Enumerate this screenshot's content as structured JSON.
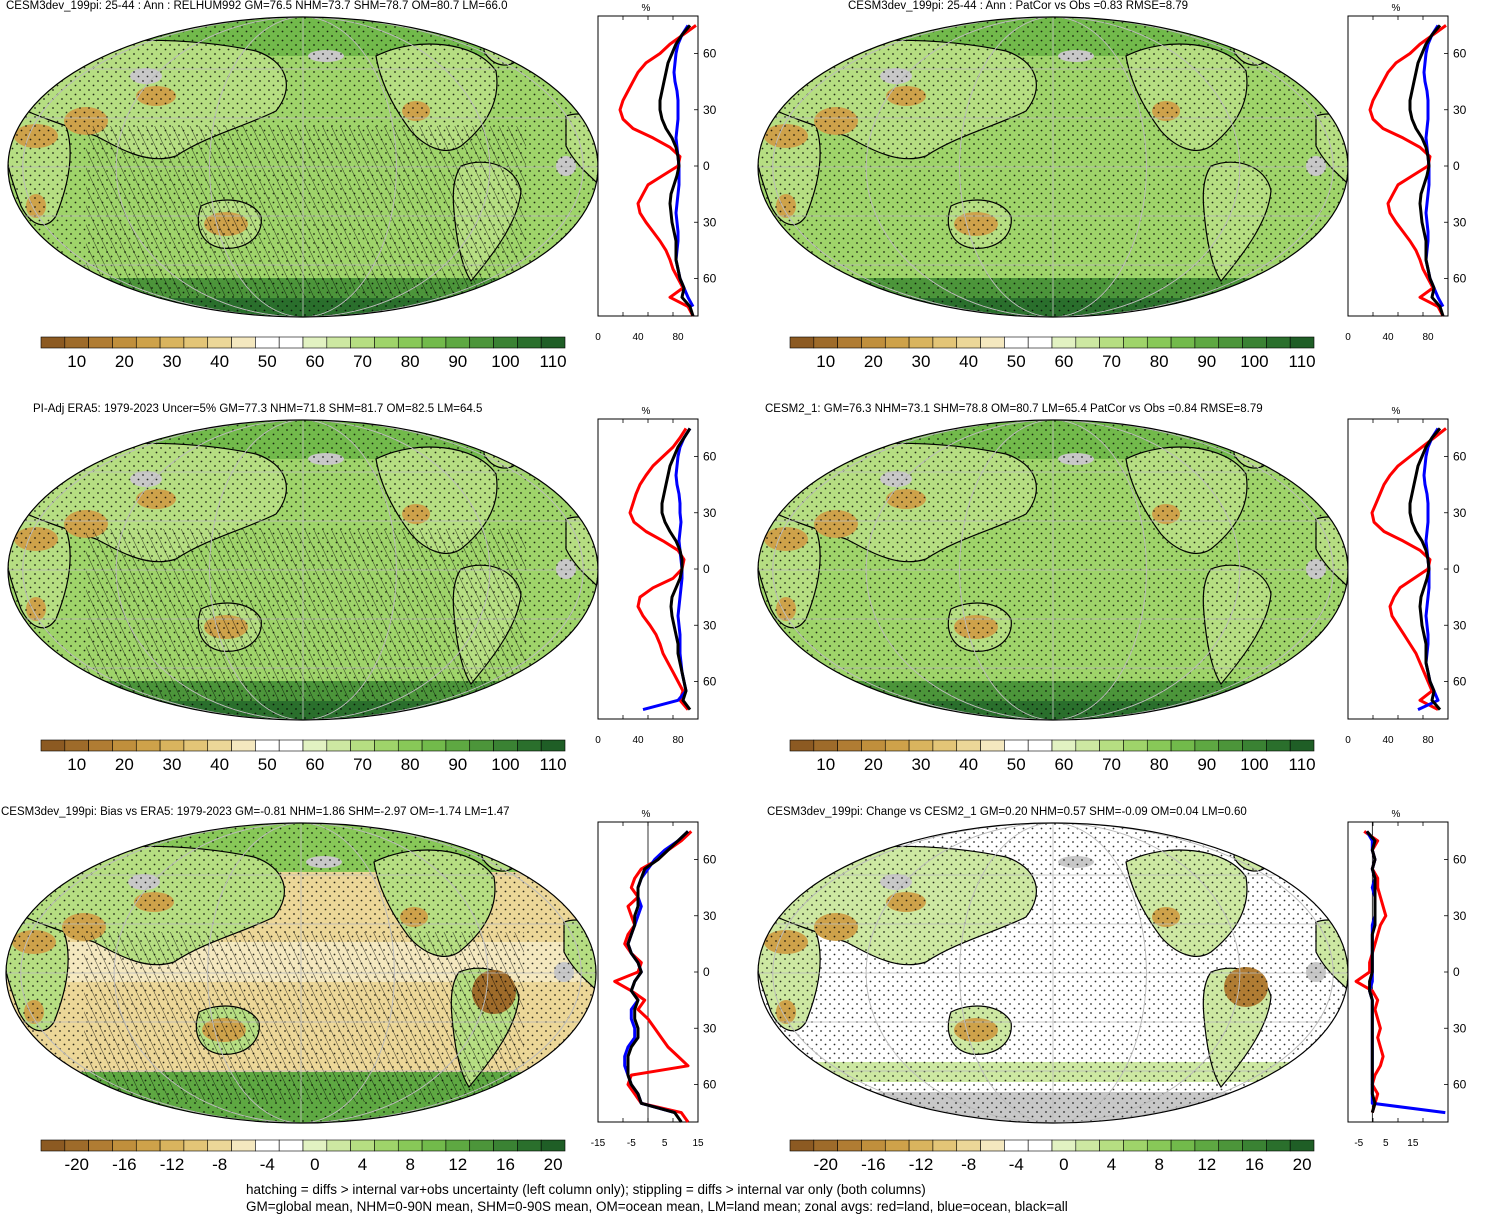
{
  "colorbars": {
    "abs": {
      "labels": [
        "10",
        "20",
        "30",
        "40",
        "50",
        "60",
        "70",
        "80",
        "90",
        "100",
        "110"
      ],
      "colors": [
        "#8c5a22",
        "#9e6b2a",
        "#b07c33",
        "#c08f3c",
        "#cea24a",
        "#d9b45e",
        "#e3c577",
        "#ecd798",
        "#f4e8bf",
        "#ffffff",
        "#ffffff",
        "#e2f2c2",
        "#cde8a2",
        "#b6de82",
        "#9fd46a",
        "#88c858",
        "#72ba4b",
        "#5ea842",
        "#4c953a",
        "#3a8233",
        "#2a6f2c",
        "#1f5e26"
      ]
    },
    "diff": {
      "labels": [
        "-20",
        "-16",
        "-12",
        "-8",
        "-4",
        "0",
        "4",
        "8",
        "12",
        "16",
        "20"
      ],
      "colors": [
        "#8c5a22",
        "#9e6b2a",
        "#b07c33",
        "#c08f3c",
        "#cea24a",
        "#d9b45e",
        "#e3c577",
        "#ecd798",
        "#f4e8bf",
        "#ffffff",
        "#ffffff",
        "#e2f2c2",
        "#cde8a2",
        "#b6de82",
        "#9fd46a",
        "#88c858",
        "#72ba4b",
        "#5ea842",
        "#4c953a",
        "#3a8233",
        "#2a6f2c",
        "#1f5e26"
      ]
    }
  },
  "colors": {
    "land": "#ff0000",
    "ocean": "#0000ff",
    "all": "#000000",
    "missing": "#c8c8c8",
    "grid": "#bbbbbb"
  },
  "lat_ticks": [
    "60N",
    "30N",
    "0",
    "30S",
    "60S"
  ],
  "panels": [
    {
      "title": "CESM3dev_199pi: 25-44 : Ann : RELHUM992 GM=76.5 NHM=73.7 SHM=78.7 OM=80.7 LM=66.0",
      "map_style": "abs",
      "hatching": true,
      "zonal": {
        "unit": "%",
        "xlim": [
          0,
          100
        ],
        "xticks": [
          0,
          40,
          80
        ],
        "xtick_labels": [
          "0",
          "40",
          "80"
        ],
        "lat": [
          75,
          70,
          65,
          60,
          55,
          50,
          45,
          40,
          35,
          30,
          25,
          20,
          15,
          10,
          5,
          0,
          -5,
          -10,
          -15,
          -20,
          -25,
          -30,
          -35,
          -40,
          -45,
          -50,
          -55,
          -60,
          -65,
          -70,
          -75,
          -80
        ],
        "land": [
          98,
          85,
          72,
          62,
          48,
          40,
          35,
          30,
          25,
          22,
          25,
          35,
          55,
          72,
          82,
          80,
          65,
          50,
          45,
          40,
          42,
          48,
          55,
          62,
          68,
          72,
          75,
          80,
          85,
          72,
          90,
          95
        ],
        "ocean": [
          90,
          84,
          80,
          78,
          77,
          76,
          77,
          79,
          80,
          80,
          80,
          79,
          78,
          79,
          80,
          81,
          81,
          81,
          80,
          79,
          78,
          79,
          80,
          80,
          79,
          78,
          80,
          82,
          86,
          90,
          95,
          null
        ],
        "all": [
          92,
          84,
          78,
          74,
          70,
          68,
          66,
          64,
          62,
          62,
          64,
          68,
          74,
          78,
          80,
          81,
          79,
          76,
          73,
          72,
          73,
          74,
          76,
          78,
          78,
          78,
          80,
          82,
          86,
          84,
          92,
          95
        ]
      }
    },
    {
      "title": "CESM3dev_199pi: 25-44 : Ann : PatCor vs Obs =0.83 RMSE=8.79",
      "map_style": "abs",
      "hatching": false,
      "zonal": {
        "unit": "%",
        "xlim": [
          0,
          100
        ],
        "xticks": [
          0,
          40,
          80
        ],
        "xtick_labels": [
          "0",
          "40",
          "80"
        ],
        "lat": [
          75,
          70,
          65,
          60,
          55,
          50,
          45,
          40,
          35,
          30,
          25,
          20,
          15,
          10,
          5,
          0,
          -5,
          -10,
          -15,
          -20,
          -25,
          -30,
          -35,
          -40,
          -45,
          -50,
          -55,
          -60,
          -65,
          -70,
          -75,
          -80
        ],
        "land": [
          98,
          85,
          72,
          62,
          48,
          40,
          35,
          30,
          25,
          22,
          25,
          35,
          55,
          72,
          82,
          80,
          65,
          50,
          45,
          40,
          42,
          48,
          55,
          62,
          68,
          72,
          75,
          80,
          85,
          72,
          90,
          95
        ],
        "ocean": [
          90,
          84,
          80,
          78,
          77,
          76,
          77,
          79,
          80,
          80,
          80,
          79,
          78,
          79,
          80,
          81,
          81,
          81,
          80,
          79,
          78,
          79,
          80,
          80,
          79,
          78,
          80,
          82,
          86,
          90,
          95,
          null
        ],
        "all": [
          92,
          84,
          78,
          74,
          70,
          68,
          66,
          64,
          62,
          62,
          64,
          68,
          74,
          78,
          80,
          81,
          79,
          76,
          73,
          72,
          73,
          74,
          76,
          78,
          78,
          78,
          80,
          82,
          86,
          84,
          92,
          95
        ]
      }
    },
    {
      "title": "PI-Adj ERA5: 1979-2023 Uncer=5% GM=77.3 NHM=71.8 SHM=81.7 OM=82.5 LM=64.5",
      "map_style": "abs",
      "hatching": true,
      "zonal": {
        "unit": "%",
        "xlim": [
          0,
          100
        ],
        "xticks": [
          0,
          40,
          80
        ],
        "xtick_labels": [
          "0",
          "40",
          "80"
        ],
        "lat": [
          75,
          70,
          65,
          60,
          55,
          50,
          45,
          40,
          35,
          30,
          25,
          20,
          15,
          10,
          5,
          0,
          -5,
          -10,
          -15,
          -20,
          -25,
          -30,
          -35,
          -40,
          -45,
          -50,
          -55,
          -60,
          -65,
          -70,
          -75,
          -80
        ],
        "land": [
          88,
          82,
          75,
          65,
          55,
          48,
          42,
          38,
          35,
          32,
          36,
          48,
          65,
          80,
          86,
          84,
          75,
          55,
          42,
          40,
          45,
          52,
          58,
          62,
          65,
          70,
          75,
          80,
          85,
          82,
          90,
          null
        ],
        "ocean": [
          92,
          86,
          82,
          80,
          79,
          78,
          79,
          81,
          82,
          82,
          83,
          82,
          81,
          82,
          83,
          84,
          84,
          83,
          82,
          81,
          80,
          81,
          82,
          82,
          82,
          83,
          84,
          86,
          88,
          80,
          45,
          null
        ],
        "all": [
          92,
          86,
          80,
          76,
          72,
          70,
          68,
          66,
          64,
          64,
          67,
          72,
          78,
          82,
          84,
          84,
          82,
          78,
          74,
          73,
          74,
          76,
          78,
          80,
          80,
          82,
          84,
          86,
          88,
          85,
          92,
          null
        ]
      }
    },
    {
      "title": "CESM2_1: GM=76.3 NHM=73.1 SHM=78.8 OM=80.7 LM=65.4 PatCor vs Obs =0.84 RMSE=8.79",
      "map_style": "abs",
      "hatching": false,
      "zonal": {
        "unit": "%",
        "xlim": [
          0,
          100
        ],
        "xticks": [
          0,
          40,
          80
        ],
        "xtick_labels": [
          "0",
          "40",
          "80"
        ],
        "lat": [
          75,
          70,
          65,
          60,
          55,
          50,
          45,
          40,
          35,
          30,
          25,
          20,
          15,
          10,
          5,
          0,
          -5,
          -10,
          -15,
          -20,
          -25,
          -30,
          -35,
          -40,
          -45,
          -50,
          -55,
          -60,
          -65,
          -70,
          -75,
          -80
        ],
        "land": [
          98,
          86,
          74,
          62,
          50,
          42,
          36,
          32,
          28,
          24,
          26,
          36,
          55,
          72,
          82,
          80,
          66,
          52,
          46,
          42,
          44,
          50,
          56,
          62,
          68,
          72,
          76,
          80,
          84,
          72,
          90,
          null
        ],
        "ocean": [
          90,
          84,
          80,
          78,
          77,
          76,
          77,
          79,
          80,
          80,
          80,
          79,
          78,
          79,
          80,
          81,
          81,
          81,
          80,
          79,
          78,
          79,
          80,
          80,
          79,
          78,
          80,
          82,
          86,
          90,
          70,
          null
        ],
        "all": [
          92,
          84,
          78,
          74,
          70,
          68,
          66,
          64,
          62,
          62,
          64,
          68,
          74,
          78,
          80,
          81,
          79,
          76,
          73,
          72,
          73,
          74,
          76,
          78,
          78,
          78,
          80,
          82,
          86,
          84,
          92,
          null
        ]
      }
    },
    {
      "title": "CESM3dev_199pi: Bias vs ERA5: 1979-2023 GM=-0.81 NHM=1.86 SHM=-2.97 OM=-1.74 LM=1.47",
      "map_style": "diff",
      "hatching": true,
      "zonal": {
        "unit": "%",
        "xlim": [
          -15,
          15
        ],
        "xticks": [
          -15,
          -5,
          5,
          15
        ],
        "xtick_labels": [
          "-15",
          "-5",
          "5",
          "15"
        ],
        "lat": [
          75,
          70,
          65,
          60,
          55,
          50,
          45,
          40,
          35,
          30,
          25,
          20,
          15,
          10,
          5,
          0,
          -5,
          -10,
          -15,
          -20,
          -25,
          -30,
          -35,
          -40,
          -45,
          -50,
          -55,
          -60,
          -65,
          -70,
          -75,
          -80
        ],
        "land": [
          13,
          10,
          6,
          3,
          -2,
          -4,
          -5,
          -3,
          -6,
          -5,
          -4,
          -6,
          -7,
          -5,
          -2,
          -3,
          -10,
          -5,
          -1,
          -3,
          0,
          2,
          4,
          6,
          9,
          12,
          -5,
          -6,
          -4,
          -2,
          10,
          12
        ],
        "ocean": [
          12,
          9,
          5,
          2,
          0,
          -2,
          -3,
          -3,
          -2,
          -3,
          -4,
          -5,
          -6,
          -5,
          -3,
          -2,
          -4,
          -5,
          -3,
          -5,
          -5,
          -4,
          -4,
          -6,
          -7,
          -7,
          -6,
          -5,
          -3,
          -2,
          8,
          null
        ],
        "all": [
          12,
          9,
          6,
          3,
          -1,
          -2,
          -3,
          -3,
          -3,
          -4,
          -4,
          -5,
          -6,
          -5,
          -3,
          -2,
          -4,
          -5,
          -3,
          -4,
          -4,
          -3,
          -3,
          -5,
          -6,
          -6,
          -6,
          -5,
          -3,
          -2,
          8,
          10
        ]
      }
    },
    {
      "title": "CESM3dev_199pi: Change vs CESM2_1 GM=0.20 NHM=0.57 SHM=-0.09 OM=0.04 LM=0.60",
      "map_style": "diff",
      "hatching": false,
      "zonal": {
        "unit": "%",
        "xlim": [
          -9,
          28
        ],
        "xticks": [
          -5,
          5,
          15
        ],
        "xtick_labels": [
          "-5",
          "5",
          "15"
        ],
        "lat": [
          75,
          70,
          65,
          60,
          55,
          50,
          45,
          40,
          35,
          30,
          25,
          20,
          15,
          10,
          5,
          0,
          -5,
          -10,
          -15,
          -20,
          -25,
          -30,
          -35,
          -40,
          -45,
          -50,
          -55,
          -60,
          -65,
          -70,
          -75,
          -80
        ],
        "land": [
          -3,
          2,
          0,
          1,
          0,
          2,
          2,
          3,
          4,
          5,
          3,
          2,
          1,
          0,
          -1,
          -1,
          -6,
          0,
          2,
          1,
          2,
          3,
          2,
          3,
          4,
          3,
          1,
          0,
          2,
          1,
          0,
          null
        ],
        "ocean": [
          -2,
          0,
          0,
          1,
          0,
          1,
          0,
          1,
          1,
          1,
          0,
          0,
          0,
          0,
          0,
          0,
          0,
          -1,
          0,
          0,
          0,
          0,
          0,
          0,
          0,
          0,
          0,
          0,
          0,
          0,
          27,
          null
        ],
        "all": [
          -2,
          1,
          0,
          1,
          0,
          1,
          1,
          1,
          1,
          1,
          1,
          0,
          0,
          0,
          0,
          0,
          -1,
          -1,
          0,
          0,
          0,
          0,
          0,
          0,
          0,
          0,
          0,
          0,
          0,
          1,
          0,
          null
        ]
      }
    }
  ],
  "footer": {
    "line1": "hatching = diffs > internal var+obs uncertainty (left column only); stippling = diffs > internal var only (both columns)",
    "line2": "GM=global mean, NHM=0-90N mean, SHM=0-90S mean, OM=ocean mean, LM=land mean; zonal avgs: red=land, blue=ocean, black=all"
  }
}
